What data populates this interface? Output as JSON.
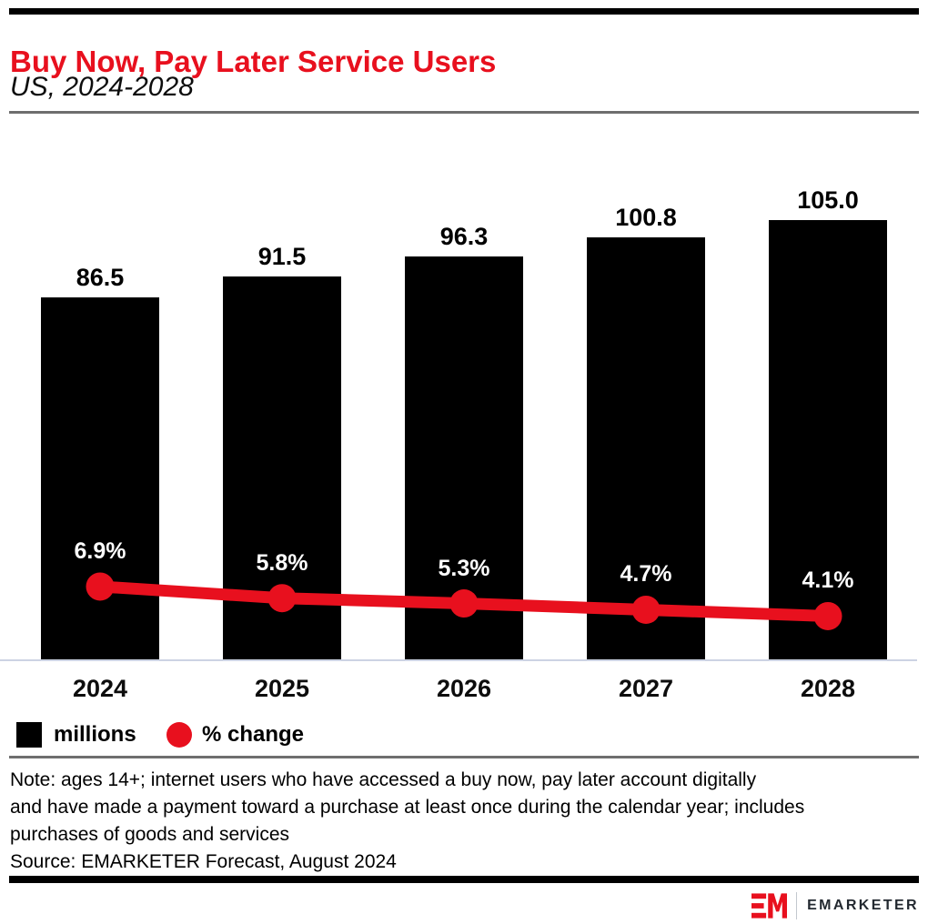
{
  "header": {
    "title": "Buy Now, Pay Later Service Users",
    "subtitle": "US, 2024-2028"
  },
  "chart_data": {
    "type": "bar",
    "subtype": "bar-and-line-combo",
    "title": "Buy Now, Pay Later Service Users",
    "subtitle": "US, 2024-2028",
    "categories": [
      "2024",
      "2025",
      "2026",
      "2027",
      "2028"
    ],
    "series": [
      {
        "name": "millions",
        "type": "bar",
        "color": "#000000",
        "values": [
          86.5,
          91.5,
          96.3,
          100.8,
          105.0
        ],
        "labels": [
          "86.5",
          "91.5",
          "96.3",
          "100.8",
          "105.0"
        ]
      },
      {
        "name": "% change",
        "type": "line",
        "color": "#e8101e",
        "values": [
          6.9,
          5.8,
          5.3,
          4.7,
          4.1
        ],
        "labels": [
          "6.9%",
          "5.8%",
          "5.3%",
          "4.7%",
          "4.1%"
        ]
      }
    ],
    "legend_position": "bottom",
    "gridlines": false,
    "y_axes_visible": false,
    "data_labels": true
  },
  "legend": {
    "items": [
      {
        "label": "millions",
        "swatch": "square",
        "color": "#000000"
      },
      {
        "label": "% change",
        "swatch": "circle",
        "color": "#e8101e"
      }
    ]
  },
  "footer": {
    "note_lines": [
      "Note: ages 14+; internet users who have accessed a buy now, pay later account digitally",
      "and have made a payment toward a purchase at least once during the calendar year; includes",
      "purchases of goods and services"
    ],
    "source": "Source: EMARKETER Forecast, August 2024"
  },
  "branding": {
    "logo_monogram": "EM",
    "brand_name": "EMARKETER"
  },
  "colors": {
    "accent_red": "#e8101e",
    "bar_black": "#000000",
    "axis_line": "#ccd3e3",
    "divider_gray": "#6e6e6e"
  }
}
